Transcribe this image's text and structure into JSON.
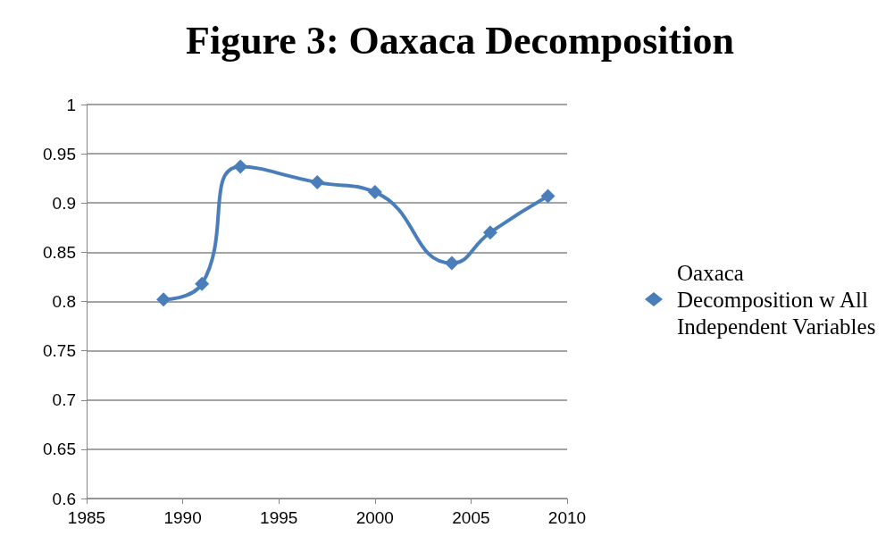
{
  "chart_data": {
    "type": "line",
    "title": "Figure 3: Oaxaca Decomposition",
    "x": [
      1989,
      1991,
      1993,
      1997,
      2000,
      2004,
      2006,
      2009
    ],
    "series": [
      {
        "name": "Oaxaca Decomposition w All Independent Variables",
        "color": "#4a7ebb",
        "values": [
          0.802,
          0.818,
          0.937,
          0.921,
          0.911,
          0.839,
          0.87,
          0.907
        ]
      }
    ],
    "xlim": [
      1985,
      2010
    ],
    "xticks": [
      1985,
      1990,
      1995,
      2000,
      2005,
      2010
    ],
    "ylim": [
      0.6,
      1
    ],
    "yticks": [
      0.6,
      0.65,
      0.7,
      0.75,
      0.8,
      0.85,
      0.9,
      0.95,
      1
    ],
    "grid": "y",
    "legend": "right",
    "marker": "diamond",
    "line_style": "solid"
  }
}
